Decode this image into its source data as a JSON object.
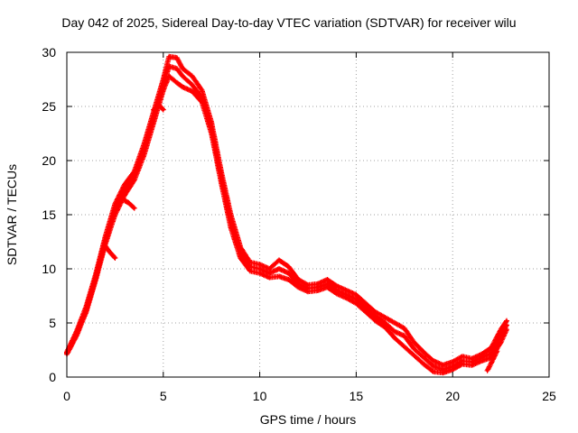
{
  "chart_data": {
    "type": "scatter",
    "title": "Day 042 of 2025, Sidereal Day-to-day VTEC variation (SDTVAR) for receiver wilu",
    "xlabel": "GPS time / hours",
    "ylabel": "SDTVAR / TECUs",
    "xlim": [
      0,
      25
    ],
    "ylim": [
      0,
      30
    ],
    "xticks": [
      "0",
      "5",
      "10",
      "15",
      "20",
      "25"
    ],
    "yticks": [
      "0",
      "5",
      "10",
      "15",
      "20",
      "25",
      "30"
    ],
    "grid": true,
    "marker": "+",
    "color": "#ff0000",
    "series": [
      {
        "name": "trace-1",
        "x": [
          0,
          0.5,
          1,
          1.5,
          2,
          2.5,
          3,
          3.5,
          4,
          4.5,
          5,
          5.3,
          5.7,
          6,
          6.5,
          7,
          7.5,
          8,
          8.5,
          9,
          9.5,
          10,
          10.5,
          11,
          11.5,
          12,
          12.5,
          13,
          13.5,
          14,
          14.5,
          15,
          15.5,
          16,
          16.5,
          17,
          17.5,
          18,
          18.5,
          19,
          19.5,
          20,
          20.5,
          21,
          21.5,
          22,
          22.5,
          22.8
        ],
        "y": [
          2.3,
          4.2,
          6.5,
          9.5,
          13,
          16,
          17.8,
          19,
          21.5,
          24.5,
          27.5,
          29.6,
          29.5,
          28.5,
          27.8,
          26.5,
          23.5,
          19,
          15,
          12,
          10.6,
          10.4,
          10,
          10.8,
          10.2,
          9,
          8.5,
          8.6,
          9,
          8.4,
          8,
          7.6,
          6.8,
          6,
          5.5,
          5,
          4.5,
          3.2,
          2.3,
          1.5,
          1.1,
          1.4,
          1.9,
          1.7,
          2.1,
          2.7,
          4.4,
          5.2
        ]
      },
      {
        "name": "trace-2",
        "x": [
          0,
          0.5,
          1,
          1.5,
          2,
          2.5,
          3,
          3.5,
          4,
          4.5,
          5,
          5.3,
          5.7,
          6,
          6.5,
          7,
          7.5,
          8,
          8.5,
          9,
          9.5,
          10,
          10.5,
          11,
          11.5,
          12,
          12.5,
          13,
          13.5,
          14,
          14.5,
          15,
          15.5,
          16,
          16.5,
          17,
          17.5,
          18,
          18.5,
          19,
          19.5,
          20,
          20.5,
          21,
          21.5,
          22,
          22.5,
          22.8
        ],
        "y": [
          2.2,
          4,
          6.2,
          9.2,
          12.6,
          15.5,
          17.2,
          18.6,
          21,
          24,
          27,
          28.7,
          28.5,
          27.8,
          27,
          25.8,
          23,
          18.6,
          14.4,
          11.4,
          10.2,
          10,
          9.6,
          10,
          9.6,
          8.6,
          8.2,
          8.3,
          8.6,
          8,
          7.6,
          7.2,
          6.4,
          5.6,
          5,
          4.2,
          3.8,
          2.6,
          1.8,
          1,
          0.7,
          1,
          1.5,
          1.4,
          1.8,
          2.2,
          3.8,
          4.8
        ]
      },
      {
        "name": "trace-3",
        "x": [
          0,
          0.5,
          1,
          1.5,
          2,
          2.5,
          3,
          3.5,
          4,
          4.5,
          5,
          5.3,
          5.7,
          6,
          6.5,
          7,
          7.5,
          8,
          8.5,
          9,
          9.5,
          10,
          10.5,
          11,
          11.5,
          12,
          12.5,
          13,
          13.5,
          14,
          14.5,
          15,
          15.5,
          16,
          16.5,
          17,
          17.5,
          18,
          18.5,
          19,
          19.5,
          20,
          20.5,
          21,
          21.5,
          22,
          22.5,
          22.8
        ],
        "y": [
          2.1,
          3.8,
          6,
          9,
          12.3,
          15,
          16.8,
          18.2,
          20.5,
          23.5,
          26.5,
          27.8,
          27.2,
          26.8,
          26.4,
          25.4,
          22.5,
          18,
          13.8,
          11,
          9.8,
          9.6,
          9.2,
          9.3,
          9,
          8.3,
          7.9,
          8,
          8.3,
          7.7,
          7.3,
          6.8,
          6,
          5.2,
          4.6,
          3.6,
          2.8,
          2,
          1.2,
          0.5,
          0.4,
          0.7,
          1.2,
          1.1,
          1.5,
          1.8,
          3.2,
          4.4
        ]
      },
      {
        "name": "trace-4",
        "x": [
          3,
          3.2,
          3.5
        ],
        "y": [
          16.3,
          16.1,
          15.6
        ]
      },
      {
        "name": "trace-5",
        "x": [
          2,
          2.2,
          2.5
        ],
        "y": [
          12.1,
          11.6,
          11
        ]
      },
      {
        "name": "trace-6",
        "x": [
          4.5,
          4.8,
          5
        ],
        "y": [
          24.7,
          25.1,
          24.7
        ]
      },
      {
        "name": "trace-7",
        "x": [
          21.8,
          22,
          22.3
        ],
        "y": [
          0.6,
          1.3,
          2.4
        ]
      }
    ]
  }
}
